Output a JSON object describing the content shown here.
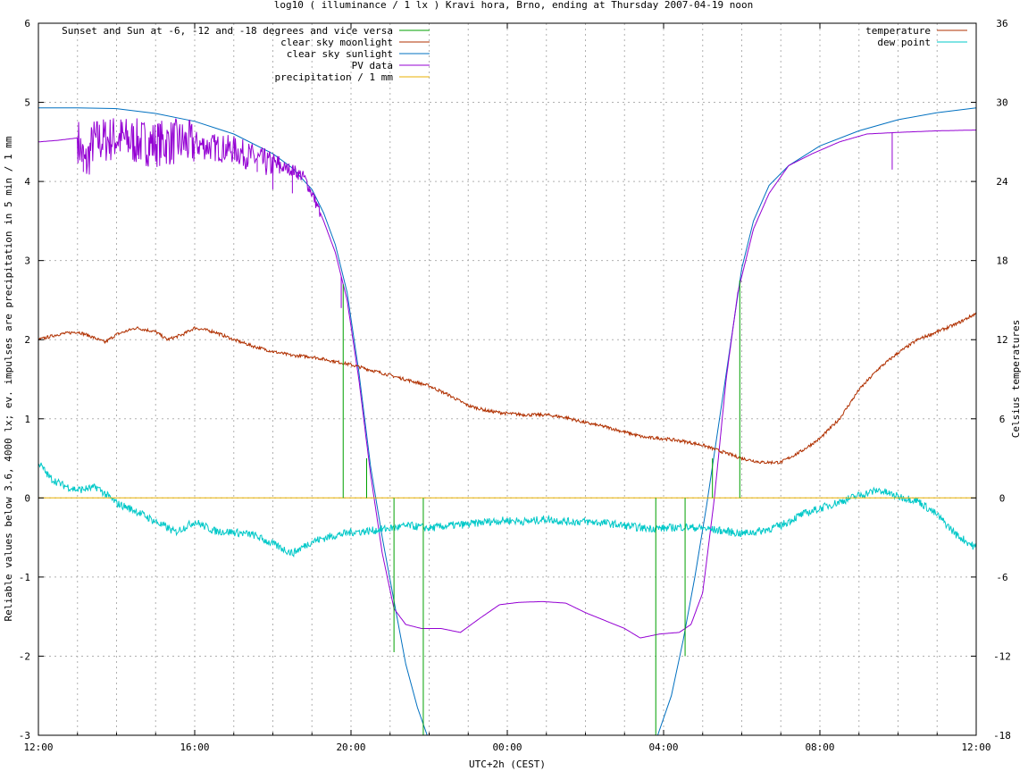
{
  "chart_data": {
    "type": "line",
    "title": "log10 ( illuminance / 1 lx ) Kravi hora, Brno, ending at Thursday 2007-04-19 noon",
    "xlabel": "UTC+2h (CEST)",
    "ylabel": "Reliable values below 3.6, 4000 lx; ev. impulses are precipitation in 5 min / 1 mm",
    "y2label": "Celsius temperatures",
    "x_unit": "hours since 12:00",
    "xlim": [
      0,
      24
    ],
    "ylim": [
      -3,
      6
    ],
    "y2lim": [
      -18,
      36
    ],
    "grid": true,
    "x_ticks": [
      {
        "x": 0,
        "label": "12:00"
      },
      {
        "x": 4,
        "label": "16:00"
      },
      {
        "x": 8,
        "label": "20:00"
      },
      {
        "x": 12,
        "label": "00:00"
      },
      {
        "x": 16,
        "label": "04:00"
      },
      {
        "x": 20,
        "label": "08:00"
      },
      {
        "x": 24,
        "label": "12:00"
      }
    ],
    "y_ticks": [
      "-3",
      "-2",
      "-1",
      "0",
      "1",
      "2",
      "3",
      "4",
      "5",
      "6"
    ],
    "y2_ticks": [
      "-18",
      "-12",
      "-6",
      "0",
      "6",
      "12",
      "18",
      "24",
      "30",
      "36"
    ],
    "legend_left": [
      {
        "label": "Sunset and Sun at -6, -12 and -18 degrees and vice versa",
        "color": "#00a000"
      },
      {
        "label": "clear sky moonlight",
        "color": "#b03000"
      },
      {
        "label": "clear sky sunlight",
        "color": "#0070c0"
      },
      {
        "label": "PV data",
        "color": "#9400d3"
      },
      {
        "label": "precipitation / 1 mm",
        "color": "#e8b000"
      }
    ],
    "legend_right": [
      {
        "label": "temperature",
        "color": "#b03000"
      },
      {
        "label": "dew point",
        "color": "#00c8c8"
      }
    ],
    "sun_markers": {
      "color": "#00a000",
      "items": [
        {
          "x": 7.8,
          "y": 2.7
        },
        {
          "x": 8.4,
          "y": 0.5
        },
        {
          "x": 9.1,
          "y": -1.95
        },
        {
          "x": 9.85,
          "y": -3
        },
        {
          "x": 15.8,
          "y": -3
        },
        {
          "x": 16.55,
          "y": -2.0
        },
        {
          "x": 17.25,
          "y": 0.5
        },
        {
          "x": 17.95,
          "y": 2.75
        }
      ]
    },
    "series": [
      {
        "name": "clear sky sunlight",
        "axis": "y1",
        "color": "#0070c0",
        "points": [
          [
            0,
            4.93
          ],
          [
            1,
            4.93
          ],
          [
            2,
            4.92
          ],
          [
            3,
            4.86
          ],
          [
            4,
            4.76
          ],
          [
            5,
            4.6
          ],
          [
            6,
            4.35
          ],
          [
            6.5,
            4.17
          ],
          [
            7,
            3.9
          ],
          [
            7.3,
            3.6
          ],
          [
            7.6,
            3.2
          ],
          [
            7.9,
            2.6
          ],
          [
            8.2,
            1.6
          ],
          [
            8.5,
            0.4
          ],
          [
            8.8,
            -0.5
          ],
          [
            9.1,
            -1.3
          ],
          [
            9.4,
            -2.1
          ],
          [
            9.7,
            -2.65
          ],
          [
            9.95,
            -3.0
          ],
          [
            15.85,
            -3.0
          ],
          [
            16.2,
            -2.5
          ],
          [
            16.5,
            -1.8
          ],
          [
            16.8,
            -1.0
          ],
          [
            17.1,
            -0.1
          ],
          [
            17.4,
            0.9
          ],
          [
            17.7,
            1.9
          ],
          [
            18.0,
            2.9
          ],
          [
            18.3,
            3.5
          ],
          [
            18.7,
            3.95
          ],
          [
            19.2,
            4.2
          ],
          [
            20,
            4.45
          ],
          [
            21,
            4.64
          ],
          [
            22,
            4.78
          ],
          [
            23,
            4.87
          ],
          [
            24,
            4.93
          ]
        ]
      },
      {
        "name": "PV data",
        "axis": "y1",
        "color": "#9400d3",
        "points": [
          [
            0,
            4.5
          ],
          [
            0.5,
            4.52
          ],
          [
            1,
            4.55
          ],
          [
            1.2,
            4.2
          ],
          [
            1.4,
            4.5
          ],
          [
            2,
            4.55
          ],
          [
            2.5,
            4.5
          ],
          [
            3,
            4.48
          ],
          [
            3.5,
            4.5
          ],
          [
            4,
            4.47
          ],
          [
            4.5,
            4.43
          ],
          [
            5,
            4.4
          ],
          [
            5.5,
            4.3
          ],
          [
            6,
            4.2
          ],
          [
            6.5,
            4.15
          ],
          [
            6.8,
            4.05
          ],
          [
            7,
            3.85
          ],
          [
            7.3,
            3.5
          ],
          [
            7.6,
            3.1
          ],
          [
            7.9,
            2.5
          ],
          [
            8.2,
            1.5
          ],
          [
            8.5,
            0.3
          ],
          [
            8.8,
            -0.7
          ],
          [
            9.1,
            -1.4
          ],
          [
            9.4,
            -1.6
          ],
          [
            9.8,
            -1.65
          ],
          [
            10.3,
            -1.65
          ],
          [
            10.8,
            -1.7
          ],
          [
            11.3,
            -1.52
          ],
          [
            11.8,
            -1.35
          ],
          [
            12.3,
            -1.32
          ],
          [
            12.9,
            -1.31
          ],
          [
            13.5,
            -1.33
          ],
          [
            14.0,
            -1.45
          ],
          [
            14.5,
            -1.55
          ],
          [
            15.0,
            -1.65
          ],
          [
            15.4,
            -1.77
          ],
          [
            15.9,
            -1.72
          ],
          [
            16.4,
            -1.7
          ],
          [
            16.7,
            -1.6
          ],
          [
            17.0,
            -1.2
          ],
          [
            17.3,
            0.0
          ],
          [
            17.6,
            1.5
          ],
          [
            17.9,
            2.6
          ],
          [
            18.3,
            3.4
          ],
          [
            18.7,
            3.85
          ],
          [
            19.2,
            4.2
          ],
          [
            19.8,
            4.35
          ],
          [
            20.5,
            4.5
          ],
          [
            21.2,
            4.6
          ],
          [
            22,
            4.62
          ],
          [
            23,
            4.64
          ],
          [
            24,
            4.65
          ]
        ],
        "noise": [
          {
            "from": 1.0,
            "to": 4.0,
            "amp": 0.3
          },
          {
            "from": 4.0,
            "to": 6.2,
            "amp": 0.18
          },
          {
            "from": 6.2,
            "to": 7.2,
            "amp": 0.08
          }
        ],
        "spikes": [
          {
            "x": 1.15,
            "y": 4.12
          },
          {
            "x": 5.6,
            "y": 4.12
          },
          {
            "x": 6.0,
            "y": 3.9
          },
          {
            "x": 6.5,
            "y": 3.85
          },
          {
            "x": 7.75,
            "y": 2.4
          },
          {
            "x": 21.85,
            "y": 4.15
          }
        ]
      },
      {
        "name": "temperature",
        "axis": "y2",
        "color": "#b03000",
        "points": [
          [
            0,
            12
          ],
          [
            0.5,
            12.4
          ],
          [
            1,
            12.6
          ],
          [
            1.3,
            12.3
          ],
          [
            1.7,
            11.8
          ],
          [
            2,
            12.4
          ],
          [
            2.5,
            12.9
          ],
          [
            3,
            12.6
          ],
          [
            3.3,
            12
          ],
          [
            3.7,
            12.4
          ],
          [
            4,
            12.9
          ],
          [
            4.5,
            12.6
          ],
          [
            5,
            12
          ],
          [
            5.5,
            11.5
          ],
          [
            6,
            11.1
          ],
          [
            6.5,
            10.8
          ],
          [
            7,
            10.7
          ],
          [
            7.5,
            10.4
          ],
          [
            8,
            10.1
          ],
          [
            8.5,
            9.7
          ],
          [
            9,
            9.3
          ],
          [
            9.5,
            8.9
          ],
          [
            10,
            8.5
          ],
          [
            10.5,
            7.8
          ],
          [
            11,
            7.0
          ],
          [
            11.5,
            6.6
          ],
          [
            12,
            6.4
          ],
          [
            12.5,
            6.3
          ],
          [
            13,
            6.3
          ],
          [
            13.5,
            6.1
          ],
          [
            14,
            5.7
          ],
          [
            14.5,
            5.4
          ],
          [
            15,
            5.0
          ],
          [
            15.5,
            4.6
          ],
          [
            16,
            4.5
          ],
          [
            16.5,
            4.3
          ],
          [
            17,
            4.0
          ],
          [
            17.5,
            3.5
          ],
          [
            18,
            3.0
          ],
          [
            18.5,
            2.7
          ],
          [
            19,
            2.7
          ],
          [
            19.5,
            3.5
          ],
          [
            20,
            4.5
          ],
          [
            20.5,
            6
          ],
          [
            21,
            8.2
          ],
          [
            21.5,
            9.8
          ],
          [
            22,
            11
          ],
          [
            22.5,
            12
          ],
          [
            23,
            12.6
          ],
          [
            23.5,
            13.2
          ],
          [
            24,
            14
          ]
        ],
        "noise": [
          {
            "from": 0,
            "to": 24,
            "amp": 0.12
          }
        ]
      },
      {
        "name": "dew point",
        "axis": "y2",
        "color": "#00c8c8",
        "points": [
          [
            0,
            2.7
          ],
          [
            0.3,
            1.5
          ],
          [
            0.6,
            1.0
          ],
          [
            1,
            0.6
          ],
          [
            1.5,
            0.8
          ],
          [
            2,
            -0.4
          ],
          [
            2.5,
            -1.0
          ],
          [
            3,
            -1.8
          ],
          [
            3.5,
            -2.6
          ],
          [
            4,
            -1.8
          ],
          [
            4.5,
            -2.5
          ],
          [
            5,
            -2.6
          ],
          [
            5.5,
            -2.8
          ],
          [
            6,
            -3.5
          ],
          [
            6.5,
            -4.2
          ],
          [
            7,
            -3.3
          ],
          [
            7.5,
            -2.9
          ],
          [
            8,
            -2.6
          ],
          [
            8.5,
            -2.5
          ],
          [
            9,
            -2.3
          ],
          [
            9.5,
            -2.1
          ],
          [
            10,
            -2.3
          ],
          [
            10.5,
            -2.1
          ],
          [
            11,
            -2.0
          ],
          [
            11.5,
            -1.8
          ],
          [
            12,
            -1.7
          ],
          [
            12.5,
            -1.8
          ],
          [
            13,
            -1.6
          ],
          [
            13.5,
            -1.8
          ],
          [
            14,
            -1.8
          ],
          [
            14.5,
            -1.9
          ],
          [
            15,
            -2.1
          ],
          [
            15.5,
            -2.3
          ],
          [
            16,
            -2.3
          ],
          [
            16.5,
            -2.2
          ],
          [
            17,
            -2.3
          ],
          [
            17.5,
            -2.5
          ],
          [
            18,
            -2.7
          ],
          [
            18.5,
            -2.5
          ],
          [
            19,
            -2.1
          ],
          [
            19.5,
            -1.3
          ],
          [
            20,
            -0.8
          ],
          [
            20.5,
            -0.3
          ],
          [
            21,
            0.2
          ],
          [
            21.5,
            0.6
          ],
          [
            22,
            0.1
          ],
          [
            22.5,
            -0.2
          ],
          [
            23,
            -1.3
          ],
          [
            23.5,
            -2.8
          ],
          [
            24,
            -3.8
          ]
        ],
        "noise": [
          {
            "from": 0,
            "to": 24,
            "amp": 0.3
          }
        ]
      },
      {
        "name": "precipitation / 1 mm",
        "axis": "y1",
        "color": "#e8b000",
        "points": [
          [
            0,
            0
          ],
          [
            24,
            0
          ]
        ]
      }
    ]
  }
}
